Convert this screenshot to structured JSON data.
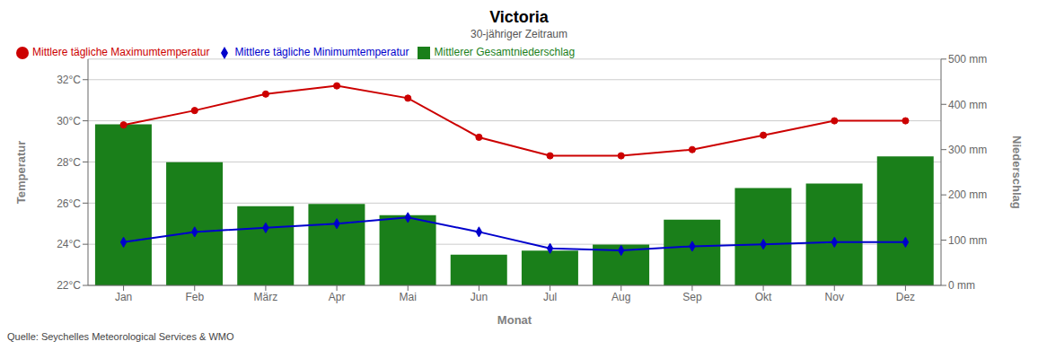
{
  "chart_data": {
    "type": "bar",
    "title": "Victoria",
    "subtitle": "30-jähriger Zeitraum",
    "source": "Quelle: Seychelles Meteorological Services & WMO",
    "xlabel": "Monat",
    "ylabel": "Temperatur",
    "y2label": "Niederschlag",
    "categories": [
      "Jan",
      "Feb",
      "März",
      "Apr",
      "Mai",
      "Jun",
      "Jul",
      "Aug",
      "Sep",
      "Okt",
      "Nov",
      "Dez"
    ],
    "series": [
      {
        "name": "Mittlerer Gesamtniederschlag",
        "type": "bar",
        "axis": "y2",
        "color": "#1a7f1a",
        "values": [
          356,
          272,
          175,
          180,
          155,
          68,
          77,
          90,
          145,
          215,
          225,
          285
        ]
      },
      {
        "name": "Mittlere tägliche Maximumtemperatur",
        "type": "line",
        "axis": "y",
        "color": "#cc0000",
        "marker": "circle",
        "line_style": "solid",
        "values": [
          29.8,
          30.5,
          31.3,
          31.7,
          31.1,
          29.2,
          28.3,
          28.3,
          28.6,
          29.3,
          30.0,
          30.0
        ]
      },
      {
        "name": "Mittlere tägliche Minimumtemperatur",
        "type": "line",
        "axis": "y",
        "color": "#0000cc",
        "marker": "diamond",
        "line_style": "solid",
        "values": [
          24.1,
          24.6,
          24.8,
          25.0,
          25.3,
          24.6,
          23.8,
          23.7,
          23.9,
          24.0,
          24.1,
          24.1
        ]
      }
    ],
    "ylim": [
      22,
      33
    ],
    "yticks": [
      {
        "value": 22,
        "label": "22°C"
      },
      {
        "value": 24,
        "label": "24°C"
      },
      {
        "value": 26,
        "label": "26°C"
      },
      {
        "value": 28,
        "label": "28°C"
      },
      {
        "value": 30,
        "label": "30°C"
      },
      {
        "value": 32,
        "label": "32°C"
      }
    ],
    "y2lim": [
      0,
      500
    ],
    "y2ticks": [
      {
        "value": 0,
        "label": "0 mm"
      },
      {
        "value": 100,
        "label": "100 mm"
      },
      {
        "value": 200,
        "label": "200 mm"
      },
      {
        "value": 300,
        "label": "300 mm"
      },
      {
        "value": 400,
        "label": "400 mm"
      },
      {
        "value": 500,
        "label": "500 mm"
      }
    ],
    "grid": true,
    "legend": "upper left"
  }
}
